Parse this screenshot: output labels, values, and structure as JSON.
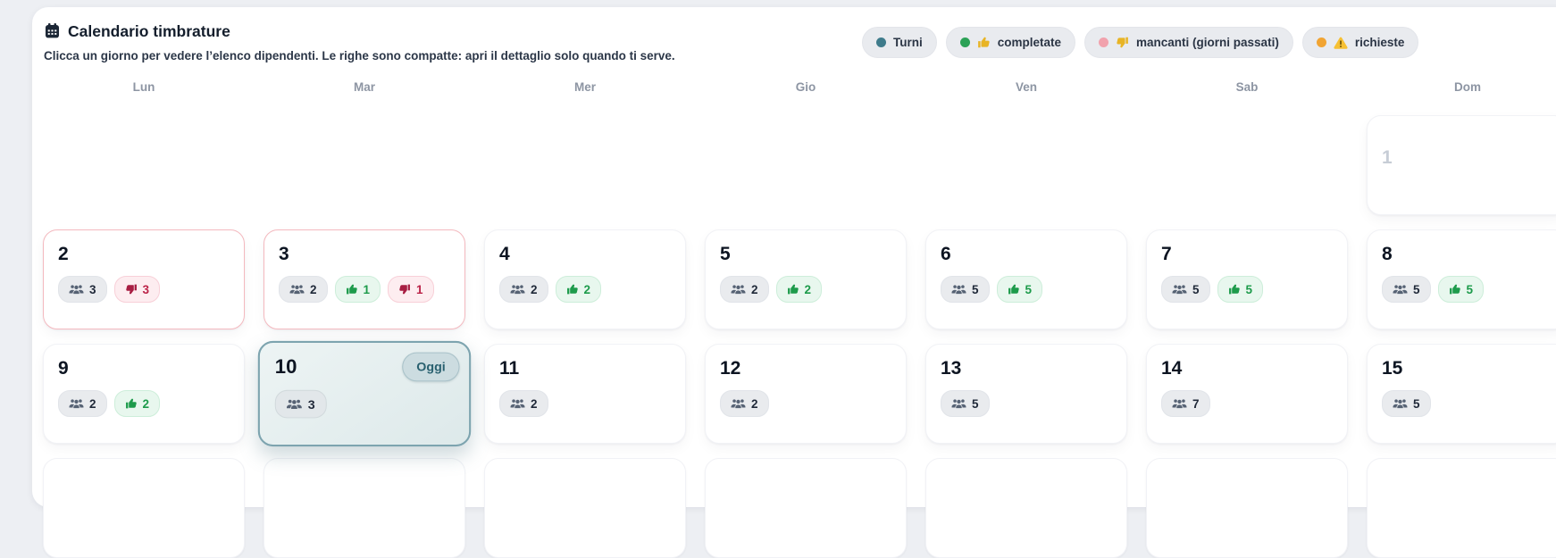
{
  "header": {
    "title": "Calendario timbrature",
    "subtitle": "Clicca un giorno per vedere l’elenco dipendenti. Le righe sono compatte: apri il dettaglio solo quando ti serve.",
    "legend": [
      {
        "id": "turni",
        "label": "Turni",
        "dot_color": "#3e7b8b",
        "icon": "none"
      },
      {
        "id": "completate",
        "label": "completate",
        "dot_color": "#2ba156",
        "icon": "thumb-up"
      },
      {
        "id": "mancanti",
        "label": "mancanti (giorni passati)",
        "dot_color": "#f1a2ad",
        "icon": "thumb-down"
      },
      {
        "id": "richieste",
        "label": "richieste",
        "dot_color": "#f1a433",
        "icon": "warning"
      }
    ]
  },
  "weekdays": [
    "Lun",
    "Mar",
    "Mer",
    "Gio",
    "Ven",
    "Sab",
    "Dom"
  ],
  "today_label": "Oggi",
  "colors": {
    "legend_thumb_gold": "#e8b425",
    "green": "#1d9b4b",
    "red": "#ba2448",
    "teal_accent": "#29606f",
    "alert_border": "#f4b9bf"
  },
  "days": [
    {
      "day": "1",
      "muted": true,
      "badges": []
    },
    {
      "day": "2",
      "alert": true,
      "badges": [
        {
          "type": "people",
          "value": "3"
        },
        {
          "type": "down",
          "value": "3"
        }
      ]
    },
    {
      "day": "3",
      "alert": true,
      "badges": [
        {
          "type": "people",
          "value": "2"
        },
        {
          "type": "up",
          "value": "1"
        },
        {
          "type": "down",
          "value": "1"
        }
      ]
    },
    {
      "day": "4",
      "badges": [
        {
          "type": "people",
          "value": "2"
        },
        {
          "type": "up",
          "value": "2"
        }
      ]
    },
    {
      "day": "5",
      "badges": [
        {
          "type": "people",
          "value": "2"
        },
        {
          "type": "up",
          "value": "2"
        }
      ]
    },
    {
      "day": "6",
      "badges": [
        {
          "type": "people",
          "value": "5"
        },
        {
          "type": "up",
          "value": "5"
        }
      ]
    },
    {
      "day": "7",
      "badges": [
        {
          "type": "people",
          "value": "5"
        },
        {
          "type": "up",
          "value": "5"
        }
      ]
    },
    {
      "day": "8",
      "badges": [
        {
          "type": "people",
          "value": "5"
        },
        {
          "type": "up",
          "value": "5"
        }
      ]
    },
    {
      "day": "9",
      "badges": [
        {
          "type": "people",
          "value": "2"
        },
        {
          "type": "up",
          "value": "2"
        }
      ]
    },
    {
      "day": "10",
      "today": true,
      "badges": [
        {
          "type": "people",
          "value": "3"
        }
      ]
    },
    {
      "day": "11",
      "badges": [
        {
          "type": "people",
          "value": "2"
        }
      ]
    },
    {
      "day": "12",
      "badges": [
        {
          "type": "people",
          "value": "2"
        }
      ]
    },
    {
      "day": "13",
      "badges": [
        {
          "type": "people",
          "value": "5"
        }
      ]
    },
    {
      "day": "14",
      "badges": [
        {
          "type": "people",
          "value": "7"
        }
      ]
    },
    {
      "day": "15",
      "badges": [
        {
          "type": "people",
          "value": "5"
        }
      ]
    }
  ]
}
